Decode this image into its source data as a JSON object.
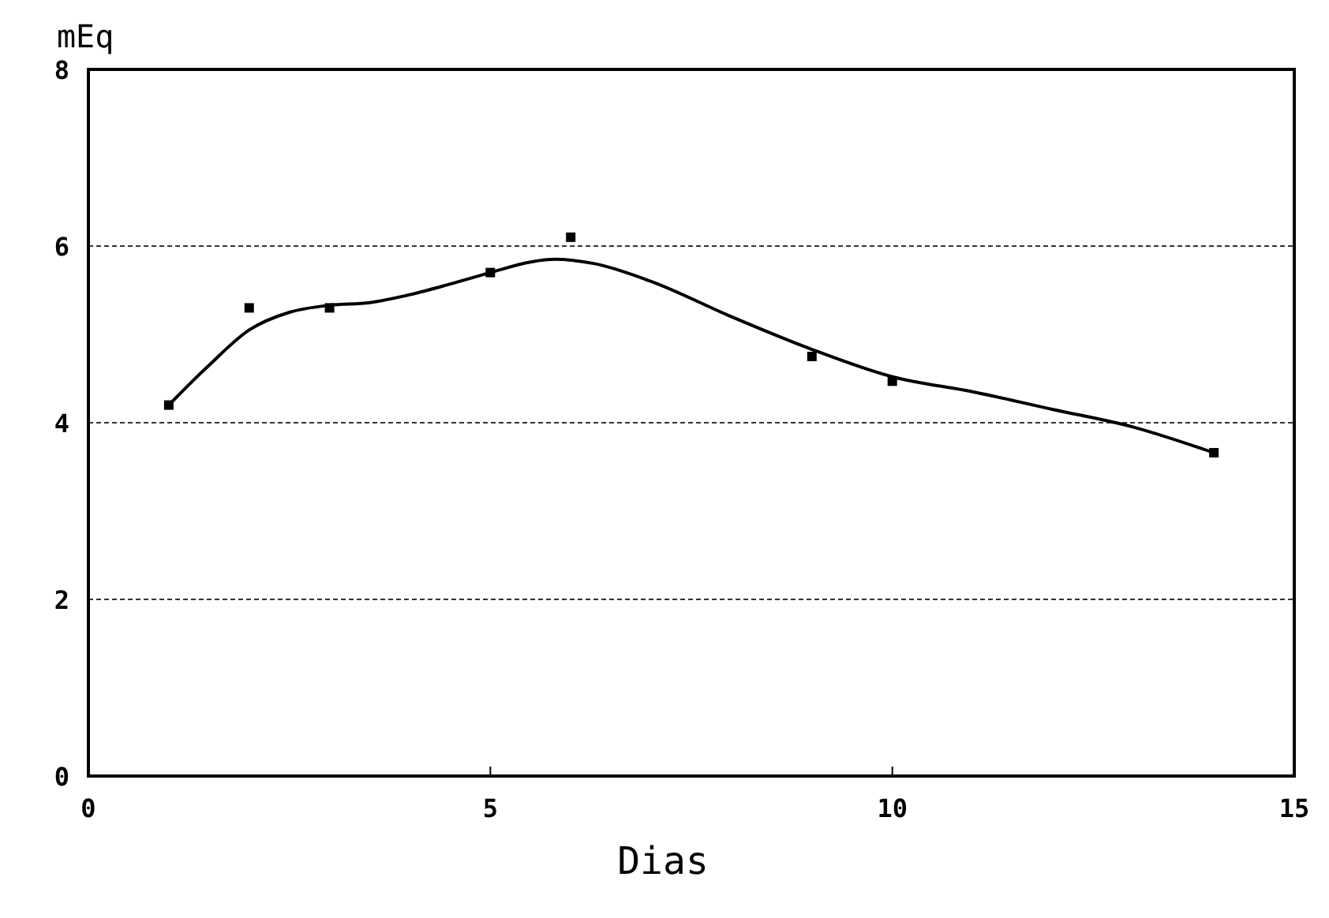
{
  "chart_data": {
    "type": "scatter",
    "xlabel": "Dias",
    "ylabel": "mEq",
    "xlim": [
      0,
      15
    ],
    "ylim": [
      0,
      8
    ],
    "xticks": [
      0,
      5,
      10,
      15
    ],
    "yticks": [
      0,
      2,
      4,
      6,
      8
    ],
    "grid": "y",
    "series": [
      {
        "color": "#000000",
        "marker": "square",
        "x": [
          1,
          2,
          3,
          5,
          6,
          9,
          10,
          14
        ],
        "values": [
          4.2,
          5.3,
          5.3,
          5.7,
          6.1,
          4.75,
          4.47,
          3.66
        ]
      },
      {
        "type": "line",
        "color": "#000000",
        "marker": "none",
        "line_style": "solid",
        "x": [
          1,
          1.5,
          2,
          2.5,
          3,
          3.5,
          4,
          4.5,
          5,
          5.5,
          5.8,
          6.3,
          7,
          8,
          9,
          10,
          11,
          12,
          13,
          14
        ],
        "values": [
          4.2,
          4.65,
          5.05,
          5.25,
          5.33,
          5.36,
          5.45,
          5.57,
          5.7,
          5.82,
          5.85,
          5.8,
          5.6,
          5.2,
          4.83,
          4.52,
          4.35,
          4.15,
          3.95,
          3.66
        ]
      }
    ]
  }
}
